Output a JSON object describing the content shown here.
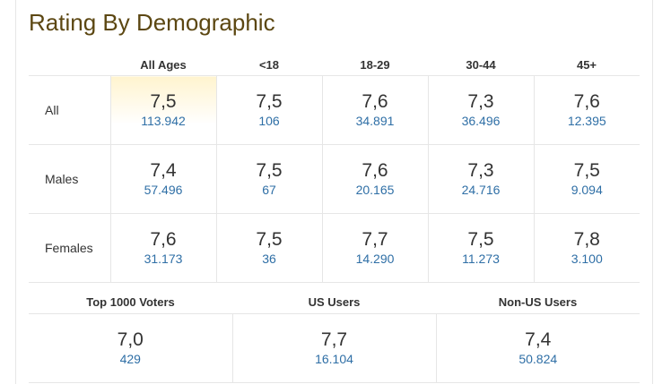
{
  "title": "Rating By Demographic",
  "columns": [
    "All Ages",
    "<18",
    "18-29",
    "30-44",
    "45+"
  ],
  "rows": [
    {
      "label": "All",
      "cells": [
        {
          "rating": "7,5",
          "votes": "113.942"
        },
        {
          "rating": "7,5",
          "votes": "106"
        },
        {
          "rating": "7,6",
          "votes": "34.891"
        },
        {
          "rating": "7,3",
          "votes": "36.496"
        },
        {
          "rating": "7,6",
          "votes": "12.395"
        }
      ]
    },
    {
      "label": "Males",
      "cells": [
        {
          "rating": "7,4",
          "votes": "57.496"
        },
        {
          "rating": "7,5",
          "votes": "67"
        },
        {
          "rating": "7,6",
          "votes": "20.165"
        },
        {
          "rating": "7,3",
          "votes": "24.716"
        },
        {
          "rating": "7,5",
          "votes": "9.094"
        }
      ]
    },
    {
      "label": "Females",
      "cells": [
        {
          "rating": "7,6",
          "votes": "31.173"
        },
        {
          "rating": "7,5",
          "votes": "36"
        },
        {
          "rating": "7,7",
          "votes": "14.290"
        },
        {
          "rating": "7,5",
          "votes": "11.273"
        },
        {
          "rating": "7,8",
          "votes": "3.100"
        }
      ]
    }
  ],
  "bottom": [
    {
      "label": "Top 1000 Voters",
      "rating": "7,0",
      "votes": "429"
    },
    {
      "label": "US Users",
      "rating": "7,7",
      "votes": "16.104"
    },
    {
      "label": "Non-US Users",
      "rating": "7,4",
      "votes": "50.824"
    }
  ],
  "colors": {
    "title": "#5c4712",
    "votes_link": "#2f6fa6",
    "highlight": "#fff4cf"
  }
}
